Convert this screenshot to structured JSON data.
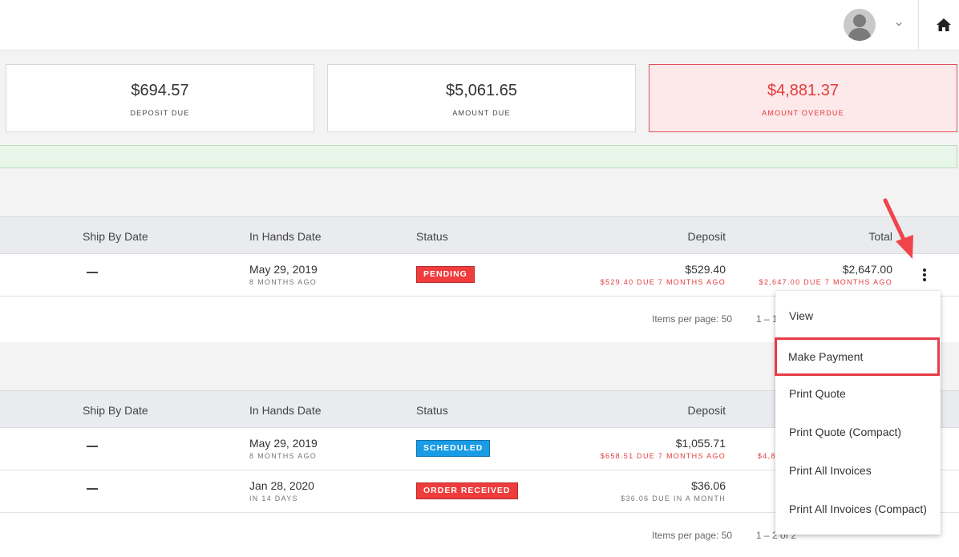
{
  "header": {
    "avatar_icon": "user-avatar-icon",
    "menu_icon": "chevron-down-icon",
    "home_icon": "home-icon"
  },
  "summary_cards": [
    {
      "amount": "$694.57",
      "label": "DEPOSIT DUE"
    },
    {
      "amount": "$5,061.65",
      "label": "AMOUNT DUE"
    },
    {
      "amount": "$4,881.37",
      "label": "AMOUNT OVERDUE",
      "color": "#e53c3c"
    }
  ],
  "table1": {
    "columns": {
      "ship_by": "Ship By Date",
      "in_hands": "In Hands Date",
      "status": "Status",
      "deposit": "Deposit",
      "total": "Total"
    },
    "rows": [
      {
        "ship_by": "—",
        "in_hands": "May 29, 2019",
        "in_hands_rel": "8 MONTHS AGO",
        "status": "PENDING",
        "deposit": "$529.40",
        "deposit_due": "$529.40 DUE 7 MONTHS AGO",
        "total": "$2,647.00",
        "total_due": "$2,647.00 DUE 7 MONTHS AGO"
      }
    ],
    "pager": {
      "items_per_page": "Items per page: 50",
      "range": "1 – 1"
    }
  },
  "table2": {
    "columns": {
      "ship_by": "Ship By Date",
      "in_hands": "In Hands Date",
      "status": "Status",
      "deposit": "Deposit"
    },
    "rows": [
      {
        "ship_by": "—",
        "in_hands": "May 29, 2019",
        "in_hands_rel": "8 MONTHS AGO",
        "status": "SCHEDULED",
        "deposit": "$1,055.71",
        "deposit_due": "$658.51 DUE 7 MONTHS AGO",
        "total_due_partial": "$4,8"
      },
      {
        "ship_by": "—",
        "in_hands": "Jan 28, 2020",
        "in_hands_rel": "IN 14 DAYS",
        "status": "ORDER RECEIVED",
        "deposit": "$36.06",
        "deposit_due": "$36.06 DUE IN A MONTH"
      }
    ],
    "pager": {
      "items_per_page": "Items per page: 50",
      "range": "1 – 2 of 2"
    }
  },
  "row_menu": {
    "items": [
      "View",
      "Make Payment",
      "Print Quote",
      "Print Quote (Compact)",
      "Print All Invoices",
      "Print All Invoices (Compact)"
    ],
    "highlighted": "Make Payment",
    "highlight_color": "#e53c47"
  },
  "colors": {
    "red": "#e53c3c",
    "blue": "#1a9be6",
    "green_bar": "#e8f5e9"
  }
}
